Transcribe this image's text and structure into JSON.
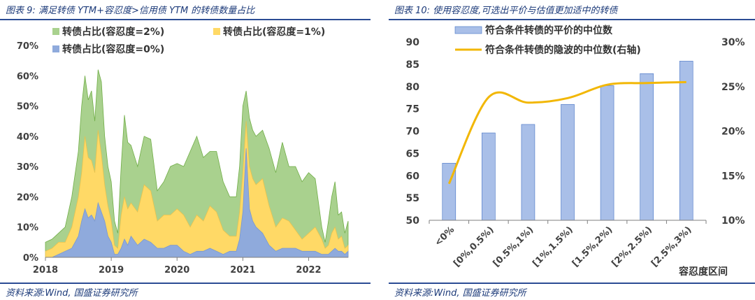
{
  "left": {
    "title": "图表 9:  满足转债 YTM+容忍度>信用债 YTM 的转债数量占比",
    "source": "资料来源:Wind, 国盛证券研究所"
  },
  "right": {
    "title": "图表 10:  使用容忍度,可选出平价与估值更加适中的转债",
    "source": "资料来源:Wind, 国盛证券研究所"
  },
  "chart_data": [
    {
      "type": "area",
      "xlabel": "",
      "ylabel": "",
      "x_ticks": [
        "2018",
        "2019",
        "2020",
        "2021",
        "2022"
      ],
      "y_ticks": [
        "0%",
        "10%",
        "20%",
        "30%",
        "40%",
        "50%",
        "60%",
        "70%"
      ],
      "ylim": [
        0,
        0.7
      ],
      "xlim": [
        2018.0,
        2022.6
      ],
      "grid": false,
      "legend_position": "top",
      "x": [
        2018.0,
        2018.1,
        2018.2,
        2018.3,
        2018.4,
        2018.5,
        2018.55,
        2018.6,
        2018.65,
        2018.7,
        2018.75,
        2018.8,
        2018.85,
        2018.9,
        2018.95,
        2019.0,
        2019.05,
        2019.1,
        2019.15,
        2019.2,
        2019.25,
        2019.3,
        2019.4,
        2019.5,
        2019.6,
        2019.7,
        2019.8,
        2019.9,
        2020.0,
        2020.1,
        2020.2,
        2020.3,
        2020.4,
        2020.5,
        2020.6,
        2020.7,
        2020.8,
        2020.9,
        2020.95,
        2021.0,
        2021.05,
        2021.1,
        2021.15,
        2021.2,
        2021.3,
        2021.4,
        2021.5,
        2021.6,
        2021.7,
        2021.8,
        2021.9,
        2022.0,
        2022.1,
        2022.2,
        2022.25,
        2022.3,
        2022.35,
        2022.4,
        2022.45,
        2022.5,
        2022.55,
        2022.6
      ],
      "series": [
        {
          "name": "转债占比(容忍度=2%)",
          "color": "#a9d18e",
          "values": [
            0.05,
            0.06,
            0.08,
            0.1,
            0.2,
            0.35,
            0.5,
            0.6,
            0.52,
            0.55,
            0.45,
            0.62,
            0.58,
            0.4,
            0.3,
            0.25,
            0.12,
            0.08,
            0.3,
            0.47,
            0.38,
            0.37,
            0.3,
            0.4,
            0.39,
            0.22,
            0.25,
            0.3,
            0.31,
            0.3,
            0.35,
            0.4,
            0.33,
            0.35,
            0.35,
            0.25,
            0.2,
            0.2,
            0.3,
            0.5,
            0.55,
            0.46,
            0.42,
            0.4,
            0.42,
            0.36,
            0.28,
            0.38,
            0.3,
            0.3,
            0.25,
            0.28,
            0.26,
            0.1,
            0.05,
            0.12,
            0.2,
            0.25,
            0.14,
            0.15,
            0.08,
            0.12
          ]
        },
        {
          "name": "转债占比(容忍度=1%)",
          "color": "#ffd966",
          "values": [
            0.02,
            0.03,
            0.05,
            0.05,
            0.1,
            0.2,
            0.28,
            0.4,
            0.33,
            0.32,
            0.28,
            0.42,
            0.34,
            0.24,
            0.17,
            0.12,
            0.04,
            0.03,
            0.14,
            0.2,
            0.16,
            0.18,
            0.15,
            0.24,
            0.22,
            0.12,
            0.14,
            0.14,
            0.16,
            0.14,
            0.1,
            0.14,
            0.12,
            0.17,
            0.15,
            0.09,
            0.07,
            0.07,
            0.15,
            0.28,
            0.45,
            0.3,
            0.26,
            0.24,
            0.26,
            0.17,
            0.1,
            0.13,
            0.12,
            0.09,
            0.06,
            0.08,
            0.1,
            0.06,
            0.03,
            0.04,
            0.08,
            0.1,
            0.06,
            0.07,
            0.03,
            0.04
          ]
        },
        {
          "name": "转债占比(容忍度=0%)",
          "color": "#8faadc",
          "values": [
            0.0,
            0.0,
            0.01,
            0.02,
            0.03,
            0.07,
            0.12,
            0.16,
            0.13,
            0.14,
            0.12,
            0.18,
            0.15,
            0.12,
            0.07,
            0.05,
            0.01,
            0.01,
            0.03,
            0.06,
            0.04,
            0.07,
            0.04,
            0.06,
            0.05,
            0.03,
            0.03,
            0.04,
            0.04,
            0.02,
            0.01,
            0.02,
            0.02,
            0.03,
            0.02,
            0.01,
            0.02,
            0.02,
            0.06,
            0.15,
            0.36,
            0.16,
            0.12,
            0.1,
            0.08,
            0.04,
            0.02,
            0.03,
            0.03,
            0.03,
            0.02,
            0.02,
            0.02,
            0.01,
            0.01,
            0.01,
            0.02,
            0.03,
            0.02,
            0.02,
            0.01,
            0.02
          ]
        }
      ]
    },
    {
      "type": "bar",
      "xlabel": "容忍度区间",
      "ylabel": "",
      "categories": [
        "<0%",
        "[0%,0.5%)",
        "[0.5%,1%)",
        "[1%,1.5%)",
        "[1.5%,2%)",
        "[2%,2.5%)",
        "[2.5%,3%)"
      ],
      "y_ticks": [
        "50",
        "55",
        "60",
        "65",
        "70",
        "75",
        "80",
        "85",
        "90"
      ],
      "ylim": [
        50,
        90
      ],
      "y2_ticks": [
        "10%",
        "15%",
        "20%",
        "25%",
        "30%"
      ],
      "y2lim": [
        0.1,
        0.3
      ],
      "grid": false,
      "legend_position": "top",
      "series": [
        {
          "name": "符合条件转债的平价的中位数",
          "type": "bar",
          "color": "#a9bfe8",
          "values": [
            62.8,
            69.6,
            71.5,
            76.0,
            80.2,
            82.9,
            85.7
          ]
        },
        {
          "name": "符合条件转债的隐波的中位数(右轴)",
          "type": "line",
          "axis": "right",
          "color": "#f2b705",
          "values": [
            0.141,
            0.238,
            0.232,
            0.237,
            0.252,
            0.254,
            0.255
          ]
        }
      ]
    }
  ]
}
